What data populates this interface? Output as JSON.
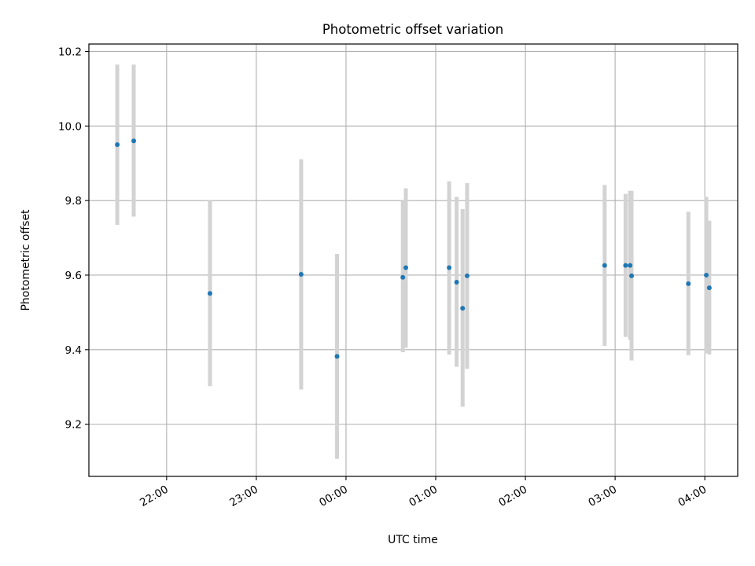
{
  "chart_data": {
    "type": "scatter",
    "title": "Photometric offset variation",
    "xlabel": "UTC time",
    "ylabel": "Photometric offset",
    "x_type": "time",
    "xlim": [
      "21:08",
      "04:22"
    ],
    "ylim": [
      9.06,
      10.22
    ],
    "xticks": [
      "22:00",
      "23:00",
      "00:00",
      "01:00",
      "02:00",
      "03:00",
      "04:00"
    ],
    "yticks": [
      "9.2",
      "9.4",
      "9.6",
      "9.8",
      "10.0",
      "10.2"
    ],
    "grid": true,
    "colors": {
      "point": "#1f77b4",
      "errorbar": "#d3d3d3",
      "grid": "#b0b0b0"
    },
    "points": [
      {
        "x": "21:27",
        "y": 9.95,
        "err_low": 9.735,
        "err_high": 10.165
      },
      {
        "x": "21:38",
        "y": 9.96,
        "err_low": 9.757,
        "err_high": 10.165
      },
      {
        "x": "22:29",
        "y": 9.551,
        "err_low": 9.302,
        "err_high": 9.8
      },
      {
        "x": "23:30",
        "y": 9.602,
        "err_low": 9.293,
        "err_high": 9.911
      },
      {
        "x": "23:54",
        "y": 9.382,
        "err_low": 9.107,
        "err_high": 9.657
      },
      {
        "x": "00:38",
        "y": 9.594,
        "err_low": 9.393,
        "err_high": 9.8
      },
      {
        "x": "00:40",
        "y": 9.62,
        "err_low": 9.405,
        "err_high": 9.833
      },
      {
        "x": "01:09",
        "y": 9.62,
        "err_low": 9.387,
        "err_high": 9.852
      },
      {
        "x": "01:14",
        "y": 9.581,
        "err_low": 9.354,
        "err_high": 9.81
      },
      {
        "x": "01:18",
        "y": 9.511,
        "err_low": 9.247,
        "err_high": 9.777
      },
      {
        "x": "01:21",
        "y": 9.598,
        "err_low": 9.349,
        "err_high": 9.847
      },
      {
        "x": "02:53",
        "y": 9.626,
        "err_low": 9.41,
        "err_high": 9.842
      },
      {
        "x": "03:07",
        "y": 9.626,
        "err_low": 9.434,
        "err_high": 9.818
      },
      {
        "x": "03:10",
        "y": 9.626,
        "err_low": 9.427,
        "err_high": 9.826
      },
      {
        "x": "03:11",
        "y": 9.598,
        "err_low": 9.371,
        "err_high": 9.826
      },
      {
        "x": "03:49",
        "y": 9.577,
        "err_low": 9.385,
        "err_high": 9.77
      },
      {
        "x": "04:01",
        "y": 9.6,
        "err_low": 9.39,
        "err_high": 9.81
      },
      {
        "x": "04:03",
        "y": 9.566,
        "err_low": 9.387,
        "err_high": 9.746
      }
    ]
  }
}
